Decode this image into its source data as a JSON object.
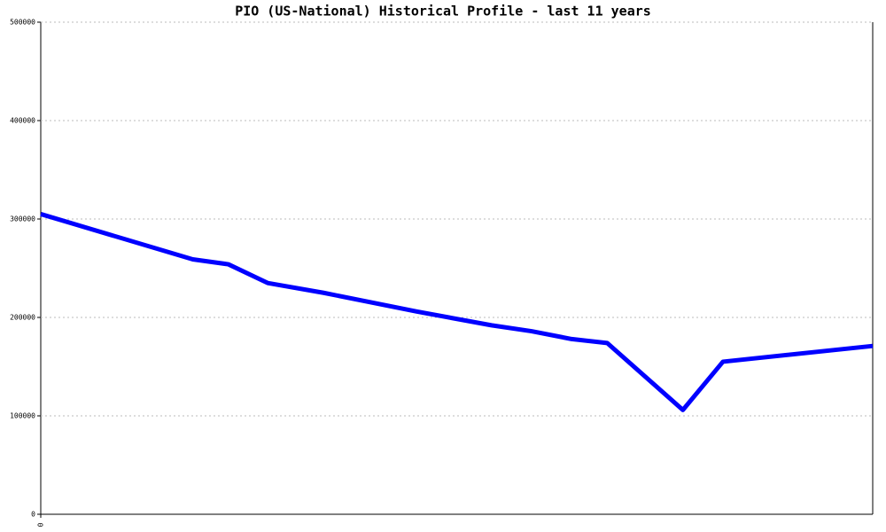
{
  "chart_data": {
    "type": "line",
    "title": "PIO (US-National) Historical Profile - last 11 years",
    "x": [
      0,
      2.01,
      2.48,
      3.0,
      3.74,
      4.97,
      5.96,
      6.49,
      7.02,
      7.49,
      8.49,
      9.02,
      11
    ],
    "series": [
      {
        "color": "#0000ff",
        "values": [
          305000,
          259000,
          254000,
          235000,
          225000,
          206000,
          192000,
          186000,
          178000,
          174000,
          106000,
          155000,
          171000
        ]
      }
    ],
    "xlim": [
      0,
      11
    ],
    "xticks": [
      0
    ],
    "ylim": [
      0,
      500000
    ],
    "yticks": [
      0,
      100000,
      200000,
      300000,
      400000,
      500000
    ],
    "grid": true
  }
}
